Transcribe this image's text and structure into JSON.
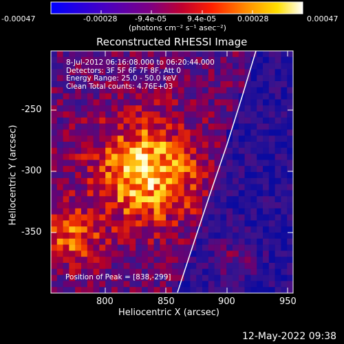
{
  "colorbar": {
    "tick_labels": [
      "-0.00047",
      "-0.00028",
      "-9.4e-05",
      "9.4e-05",
      "0.00028",
      "0.00047"
    ],
    "unit_label": "(photons cm⁻² s⁻¹ asec⁻²)"
  },
  "plot": {
    "title": "Reconstructed RHESSI Image",
    "xlabel": "Heliocentric X (arcsec)",
    "ylabel": "Heliocentric Y (arcsec)",
    "x_tick_labels": [
      "800",
      "850",
      "900",
      "950"
    ],
    "y_tick_labels": [
      "-250",
      "-300",
      "-350"
    ],
    "annotation": {
      "line1": "8-Jul-2012 06:16:08.000 to 06:20:44.000",
      "line2": "Detectors: 3F 5F 6F 7F 8F, Att 0",
      "line3": "Energy Range: 25.0 - 50.0 keV",
      "line4": "Clean     Total counts: 4.76E+03"
    },
    "peak_label": "Position of Peak = [838,-299]",
    "colors": {
      "limb": "#ffffff",
      "peak": "#ffffb0",
      "background_low": "#3018a0"
    }
  },
  "footer": {
    "timestamp": "12-May-2022 09:38"
  }
}
